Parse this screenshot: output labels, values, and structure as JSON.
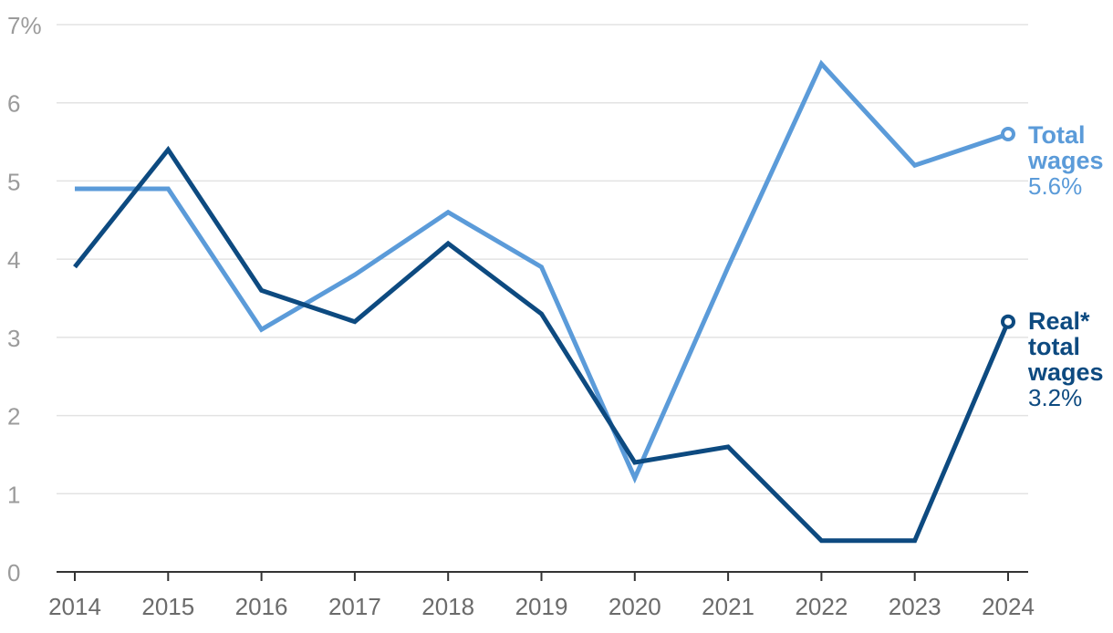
{
  "chart_data": {
    "type": "line",
    "x": [
      2014,
      2015,
      2016,
      2017,
      2018,
      2019,
      2020,
      2021,
      2022,
      2023,
      2024
    ],
    "series": [
      {
        "key": "total",
        "name_lines": [
          "Total",
          "wages"
        ],
        "end_label": "5.6%",
        "color": "#5b9bd9",
        "values": [
          4.9,
          4.9,
          3.1,
          3.8,
          4.6,
          3.9,
          1.2,
          3.9,
          6.5,
          5.2,
          5.6
        ]
      },
      {
        "key": "real",
        "name_lines": [
          "Real*",
          "total",
          "wages"
        ],
        "end_label": "3.2%",
        "color": "#0d4a80",
        "values": [
          3.9,
          5.4,
          3.6,
          3.2,
          4.2,
          3.3,
          1.4,
          1.6,
          0.4,
          0.4,
          3.2
        ]
      }
    ],
    "y_ticks": [
      "0",
      "1",
      "2",
      "3",
      "4",
      "5",
      "6",
      "7%"
    ],
    "x_ticks": [
      "2014",
      "2015",
      "2016",
      "2017",
      "2018",
      "2019",
      "2020",
      "2021",
      "2022",
      "2023",
      "2024"
    ],
    "ylim": [
      0,
      7
    ],
    "grid": true,
    "legend": "end-labels-right"
  }
}
